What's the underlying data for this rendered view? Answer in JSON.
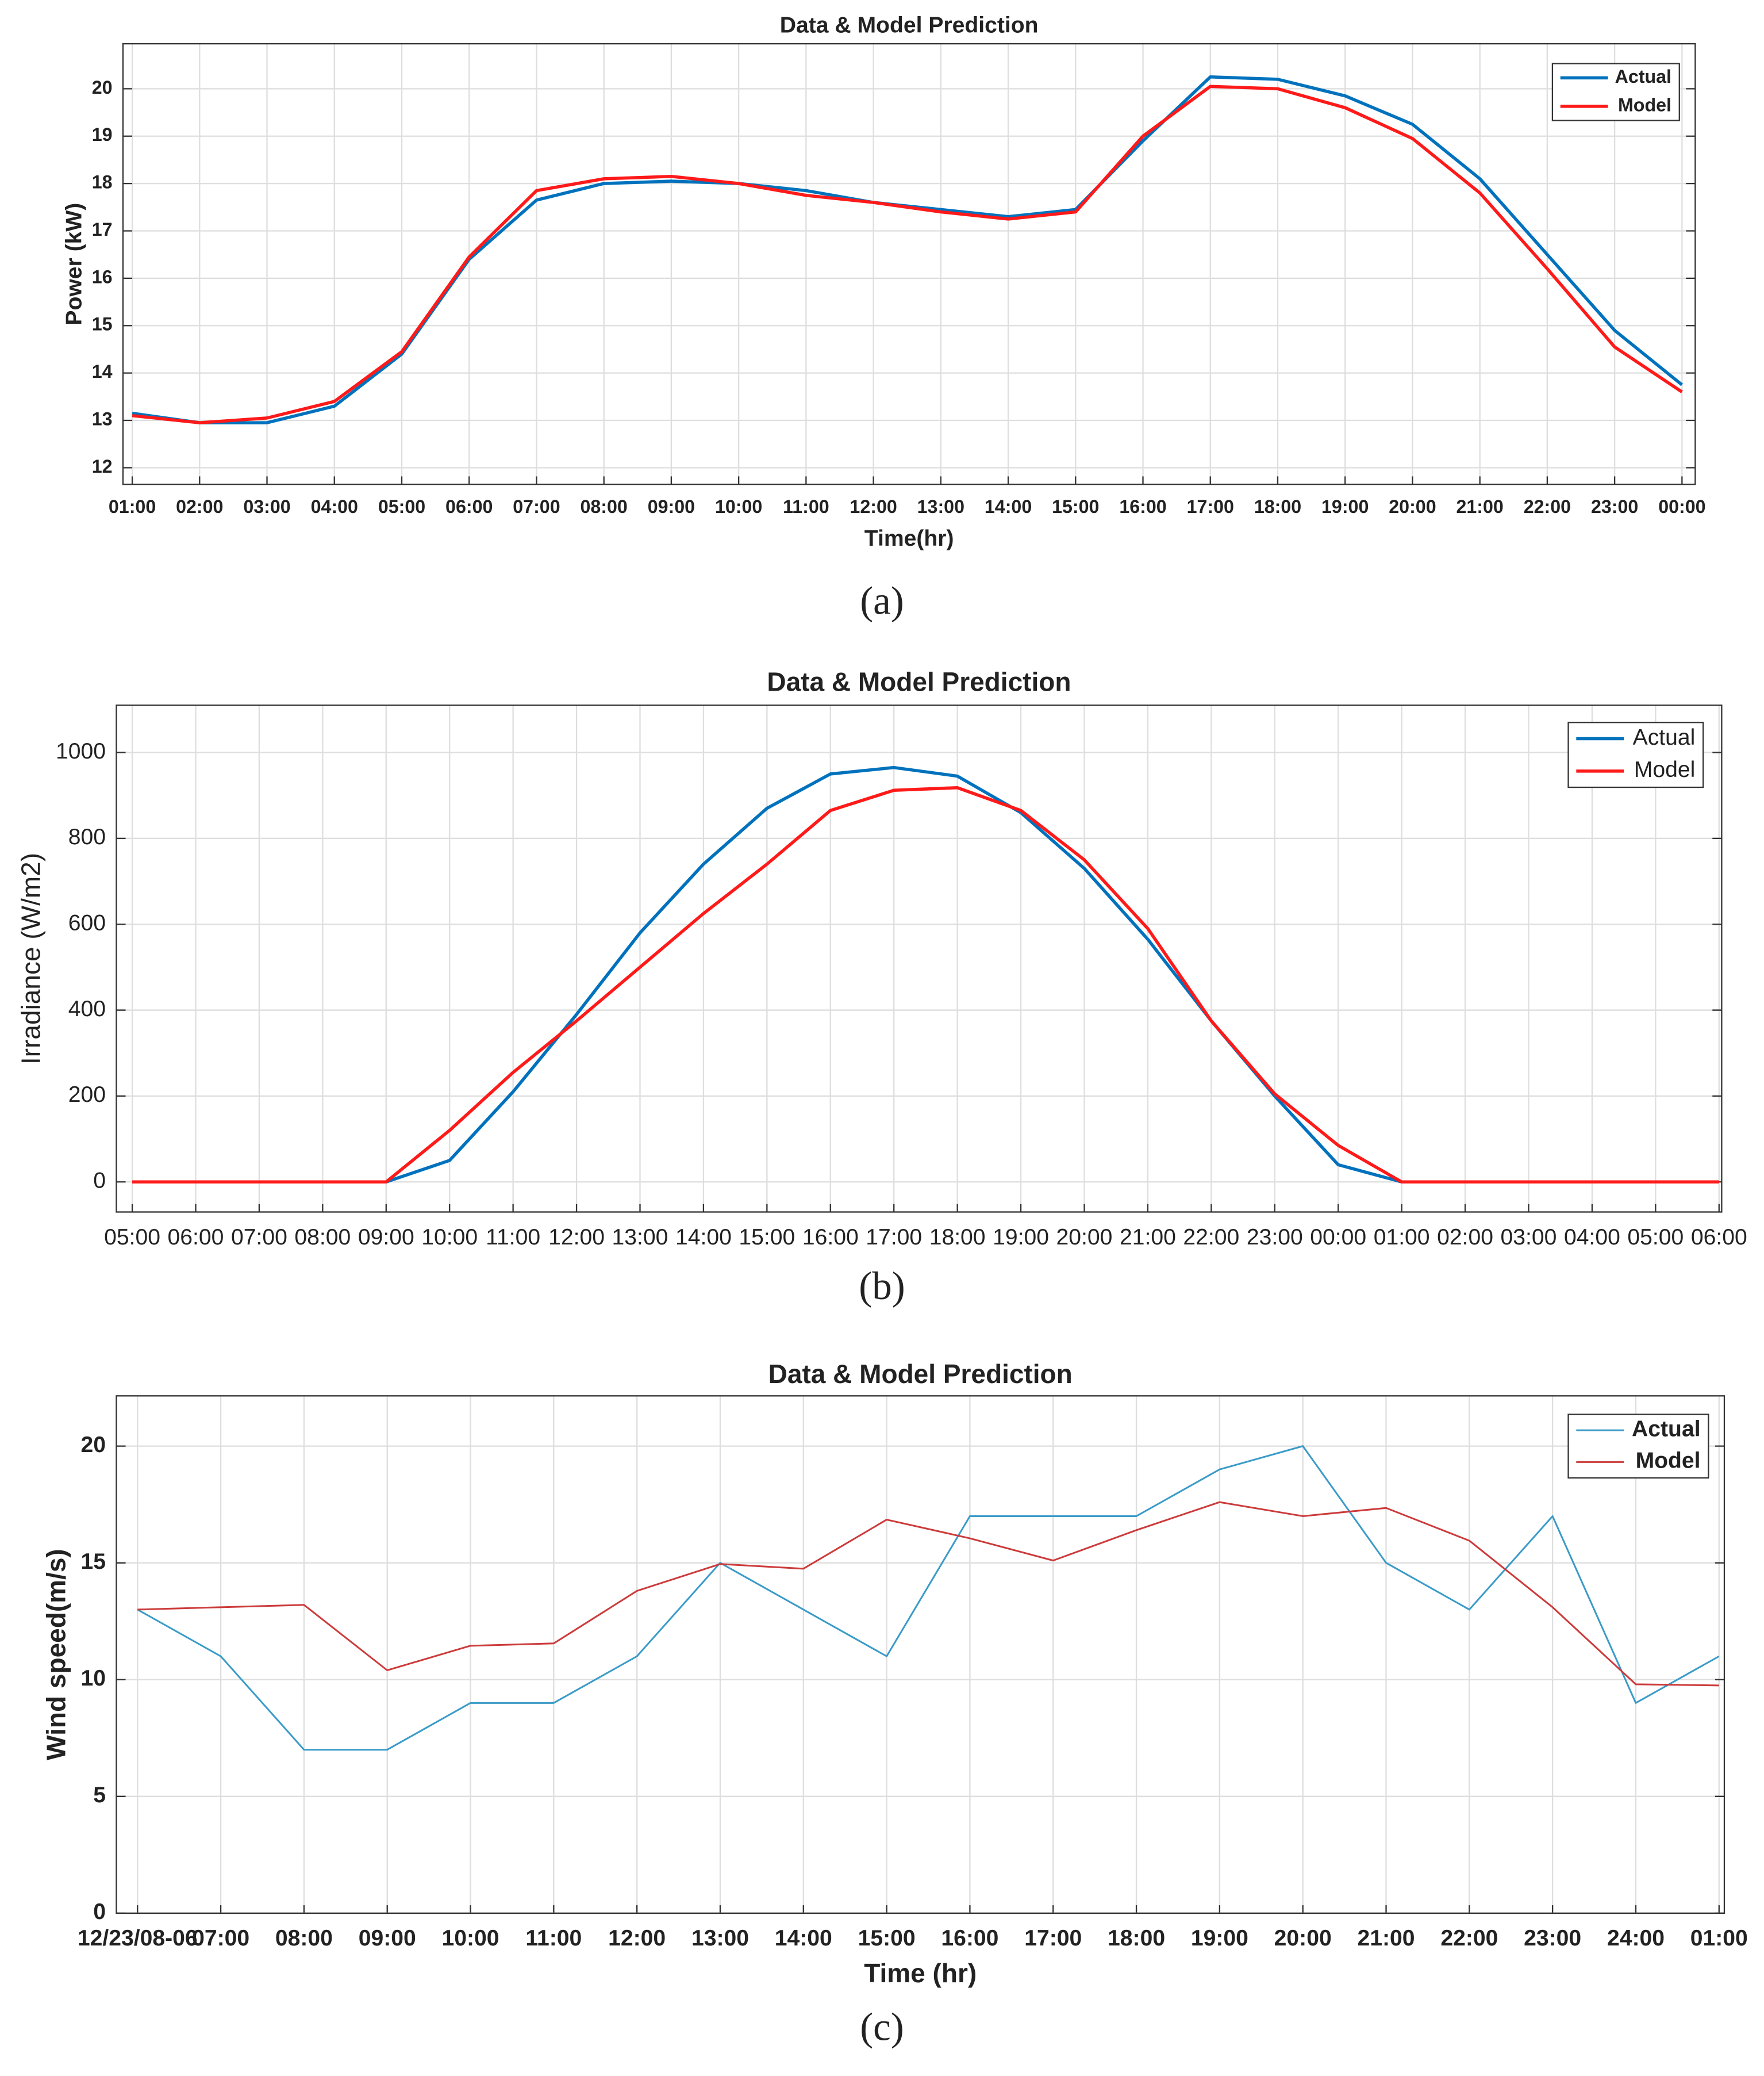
{
  "chart_data": [
    {
      "type": "line",
      "title": "Data & Model Prediction",
      "x_label": "Time(hr)",
      "y_label": "Power (kW)",
      "caption": "(a)",
      "categories": [
        "01:00",
        "02:00",
        "03:00",
        "04:00",
        "05:00",
        "06:00",
        "07:00",
        "08:00",
        "09:00",
        "10:00",
        "11:00",
        "12:00",
        "13:00",
        "14:00",
        "15:00",
        "16:00",
        "17:00",
        "18:00",
        "19:00",
        "20:00",
        "21:00",
        "22:00",
        "23:00",
        "00:00"
      ],
      "series": [
        {
          "name": "Actual",
          "color": "#0072bd",
          "values": [
            13.15,
            12.95,
            12.95,
            13.3,
            14.4,
            16.4,
            17.65,
            18.0,
            18.05,
            18.0,
            17.85,
            17.6,
            17.45,
            17.3,
            17.45,
            18.9,
            20.25,
            20.2,
            19.85,
            19.25,
            18.1,
            16.5,
            14.9,
            13.75
          ]
        },
        {
          "name": "Model",
          "color": "#ff1a1a",
          "values": [
            13.1,
            12.95,
            13.05,
            13.4,
            14.45,
            16.45,
            17.85,
            18.1,
            18.15,
            18.0,
            17.75,
            17.6,
            17.4,
            17.25,
            17.4,
            19.0,
            20.05,
            20.0,
            19.6,
            18.95,
            17.8,
            16.2,
            14.55,
            13.6
          ]
        }
      ],
      "ylim": [
        11.65,
        20.95
      ],
      "yticks": [
        12,
        13,
        14,
        15,
        16,
        17,
        18,
        19,
        20
      ],
      "grid": true,
      "legend": "upper right"
    },
    {
      "type": "line",
      "title": "Data & Model Prediction",
      "y_label": "Irradiance (W/m2)",
      "caption": "(b)",
      "categories": [
        "05:00",
        "06:00",
        "07:00",
        "08:00",
        "09:00",
        "10:00",
        "11:00",
        "12:00",
        "13:00",
        "14:00",
        "15:00",
        "16:00",
        "17:00",
        "18:00",
        "19:00",
        "20:00",
        "21:00",
        "22:00",
        "23:00",
        "00:00",
        "01:00",
        "02:00",
        "03:00",
        "04:00",
        "05:00",
        "06:00"
      ],
      "series": [
        {
          "name": "Actual",
          "color": "#0072bd",
          "values": [
            0,
            0,
            0,
            0,
            0,
            50,
            210,
            390,
            580,
            740,
            870,
            950,
            965,
            945,
            860,
            730,
            565,
            375,
            200,
            40,
            0,
            0,
            0,
            0,
            0,
            0
          ]
        },
        {
          "name": "Model",
          "color": "#ff1a1a",
          "values": [
            0,
            0,
            0,
            0,
            0,
            120,
            255,
            375,
            500,
            625,
            740,
            865,
            912,
            918,
            865,
            750,
            590,
            375,
            205,
            85,
            0,
            0,
            0,
            0,
            0,
            0
          ]
        }
      ],
      "ylim": [
        -70,
        1110
      ],
      "yticks": [
        0,
        200,
        400,
        600,
        800,
        1000
      ],
      "grid": true,
      "legend": "upper right"
    },
    {
      "type": "line",
      "title": "Data & Model Prediction",
      "x_label": "Time (hr)",
      "y_label": "Wind speed(m/s)",
      "caption": "(c)",
      "categories": [
        "12/23/08-06",
        "07:00",
        "08:00",
        "09:00",
        "10:00",
        "11:00",
        "12:00",
        "13:00",
        "14:00",
        "15:00",
        "16:00",
        "17:00",
        "18:00",
        "19:00",
        "20:00",
        "21:00",
        "22:00",
        "23:00",
        "24:00",
        "01:00"
      ],
      "series": [
        {
          "name": "Actual",
          "color": "#3a9bc8",
          "values": [
            13,
            11,
            7,
            7,
            9,
            9,
            11,
            15,
            13,
            11,
            17,
            17,
            17,
            19,
            20,
            15,
            13,
            17,
            9,
            11
          ]
        },
        {
          "name": "Model",
          "color": "#cc3b3b",
          "values": [
            13.0,
            13.1,
            13.2,
            10.4,
            11.45,
            11.55,
            13.8,
            14.95,
            14.75,
            16.85,
            16.05,
            15.1,
            16.4,
            17.6,
            17.0,
            17.35,
            15.95,
            13.1,
            9.8,
            9.75
          ]
        }
      ],
      "ylim": [
        0,
        22.15
      ],
      "yticks": [
        0,
        5,
        10,
        15,
        20
      ],
      "grid": true,
      "legend": "upper right"
    }
  ]
}
